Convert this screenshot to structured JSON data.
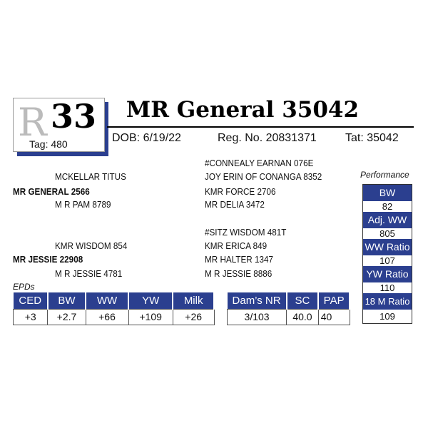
{
  "header": {
    "logo_letter": "R",
    "lot_number": "33",
    "tag": "Tag: 480",
    "title": "MR General 35042",
    "dob": "DOB: 6/19/22",
    "reg_no": "Reg. No. 20831371",
    "tattoo": "Tat: 35042"
  },
  "pedigree": {
    "sire": "MR GENERAL 2566",
    "sire_sire": "MCKELLAR TITUS",
    "sire_dam": "M R PAM 8789",
    "sire_sire_sire": "#CONNEALY EARNAN 076E",
    "sire_sire_dam": "JOY ERIN OF CONANGA 8352",
    "sire_dam_sire": "KMR FORCE 2706",
    "sire_dam_dam": "MR DELIA 3472",
    "dam": "MR JESSIE 22908",
    "dam_sire": "KMR WISDOM 854",
    "dam_dam": "M R JESSIE 4781",
    "dam_sire_sire": "#SITZ WISDOM 481T",
    "dam_sire_dam": "KMR ERICA 849",
    "dam_dam_sire": "MR HALTER 1347",
    "dam_dam_dam": "M R JESSIE 8886"
  },
  "performance": {
    "label": "Performance",
    "items": [
      {
        "label": "BW",
        "value": "82"
      },
      {
        "label": "Adj. WW",
        "value": "805"
      },
      {
        "label": "WW Ratio",
        "value": "107"
      },
      {
        "label": "YW Ratio",
        "value": "110"
      },
      {
        "label": "18 M Ratio",
        "value": "109"
      }
    ]
  },
  "epds": {
    "label": "EPDs",
    "headers": [
      "CED",
      "BW",
      "WW",
      "YW",
      "Milk"
    ],
    "values": [
      "+3",
      "+2.7",
      "+66",
      "+109",
      "+26"
    ]
  },
  "other": {
    "headers": [
      "Dam’s NR",
      "SC",
      "PAP"
    ],
    "values": [
      "3/103",
      "40.0",
      "40"
    ]
  },
  "colors": {
    "accent": "#2b3f8f"
  }
}
